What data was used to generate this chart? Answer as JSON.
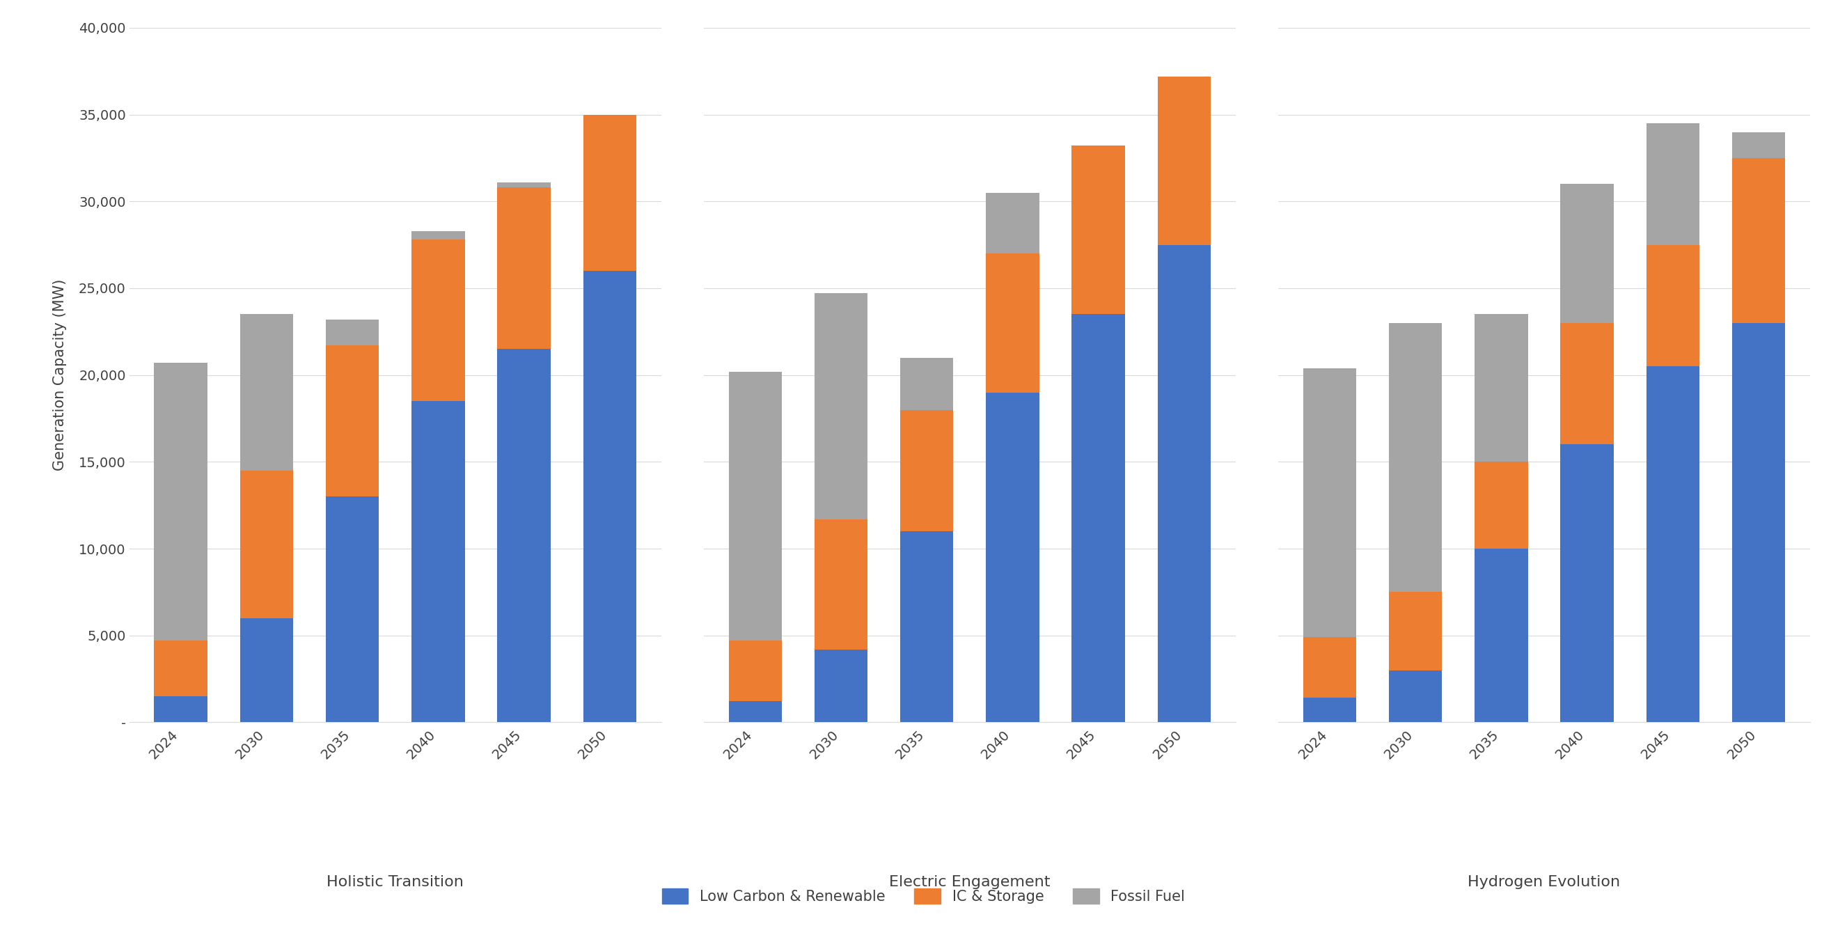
{
  "groups": [
    "Holistic Transition",
    "Electric Engagement",
    "Hydrogen Evolution"
  ],
  "years": [
    "2024",
    "2030",
    "2035",
    "2040",
    "2045",
    "2050"
  ],
  "low_carbon_renewable": {
    "Holistic Transition": [
      1500,
      6000,
      13000,
      18500,
      21500,
      26000
    ],
    "Electric Engagement": [
      1200,
      4200,
      11000,
      19000,
      23500,
      27500
    ],
    "Hydrogen Evolution": [
      1400,
      3000,
      10000,
      16000,
      20500,
      23000
    ]
  },
  "ic_storage": {
    "Holistic Transition": [
      3200,
      8500,
      8700,
      9300,
      9300,
      9000
    ],
    "Electric Engagement": [
      3500,
      7500,
      7000,
      8000,
      9700,
      9700
    ],
    "Hydrogen Evolution": [
      3500,
      4500,
      5000,
      7000,
      7000,
      9500
    ]
  },
  "fossil_fuel": {
    "Holistic Transition": [
      16000,
      9000,
      1500,
      500,
      300,
      0
    ],
    "Electric Engagement": [
      15500,
      13000,
      3000,
      3500,
      0,
      0
    ],
    "Hydrogen Evolution": [
      15500,
      15500,
      8500,
      8000,
      7000,
      1500
    ]
  },
  "colors": {
    "low_carbon_renewable": "#4472C4",
    "ic_storage": "#ED7D31",
    "fossil_fuel": "#A5A5A5"
  },
  "ylabel": "Generation Capacity (MW)",
  "ylim": [
    0,
    40000
  ],
  "yticks": [
    0,
    5000,
    10000,
    15000,
    20000,
    25000,
    30000,
    35000,
    40000
  ],
  "ytick_labels": [
    "-",
    "5,000",
    "10,000",
    "15,000",
    "20,000",
    "25,000",
    "30,000",
    "35,000",
    "40,000"
  ],
  "legend_labels": [
    "Low Carbon & Renewable",
    "IC & Storage",
    "Fossil Fuel"
  ],
  "background_color": "#FFFFFF",
  "grid_color": "#D9D9D9"
}
